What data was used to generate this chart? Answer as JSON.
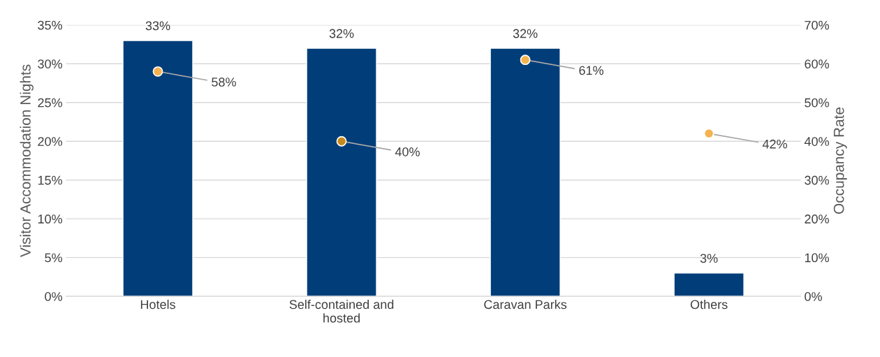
{
  "chart_data": {
    "type": "bar",
    "categories": [
      "Hotels",
      "Self-contained and\nhosted",
      "Caravan Parks",
      "Others"
    ],
    "ylabel": "Visitor Accommodation Nights",
    "y2label": "Occupancy Rate",
    "ylim": [
      0,
      35
    ],
    "yticks": [
      {
        "value": 0,
        "label": "0%"
      },
      {
        "value": 5,
        "label": "5%"
      },
      {
        "value": 10,
        "label": "10%"
      },
      {
        "value": 15,
        "label": "15%"
      },
      {
        "value": 20,
        "label": "20%"
      },
      {
        "value": 25,
        "label": "25%"
      },
      {
        "value": 30,
        "label": "30%"
      },
      {
        "value": 35,
        "label": "35%"
      }
    ],
    "y2lim": [
      0,
      70
    ],
    "y2ticks": [
      {
        "value": 0,
        "label": "0%"
      },
      {
        "value": 10,
        "label": "10%"
      },
      {
        "value": 20,
        "label": "20%"
      },
      {
        "value": 30,
        "label": "30%"
      },
      {
        "value": 40,
        "label": "40%"
      },
      {
        "value": 50,
        "label": "50%"
      },
      {
        "value": 60,
        "label": "60%"
      },
      {
        "value": 70,
        "label": "70%"
      }
    ],
    "grid": "y",
    "legend": false,
    "series": [
      {
        "color": "#003d79",
        "values": [
          33,
          32,
          32,
          3
        ],
        "value_labels": [
          "33%",
          "32%",
          "32%",
          "3%"
        ]
      },
      {
        "type": "scatter",
        "axis": "y2",
        "x": [
          "Hotels",
          "Self-contained and\nhosted",
          "Caravan Parks",
          "Others"
        ],
        "colors": [
          "#f4b350",
          "#c8891b",
          "#f4b350",
          "#f4b350"
        ],
        "marker": "circle",
        "values": [
          58,
          40,
          61,
          42
        ],
        "value_labels": [
          "58%",
          "40%",
          "61%",
          "42%"
        ]
      }
    ]
  }
}
